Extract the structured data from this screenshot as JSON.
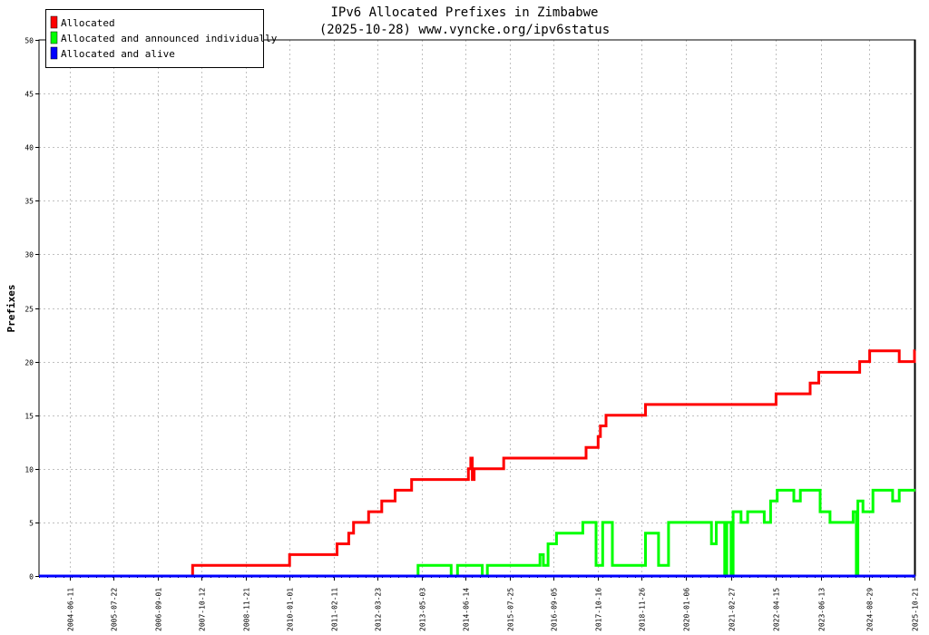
{
  "chart_data": {
    "type": "line",
    "title": "IPv6 Allocated Prefixes in Zimbabwe",
    "subtitle": "(2025-10-28) www.vyncke.org/ipv6status",
    "ylabel": "Prefixes",
    "xlabel": "",
    "ylim": [
      0,
      50
    ],
    "yticks": [
      0,
      5,
      10,
      15,
      20,
      25,
      30,
      35,
      40,
      45,
      50
    ],
    "xlim": [
      "2003-09-01",
      "2025-10-28"
    ],
    "xticks": [
      "2004-06-11",
      "2005-07-22",
      "2006-09-01",
      "2007-10-12",
      "2008-11-21",
      "2010-01-01",
      "2011-02-11",
      "2012-03-23",
      "2013-05-03",
      "2014-06-14",
      "2015-07-25",
      "2016-09-05",
      "2017-10-16",
      "2018-11-26",
      "2020-01-06",
      "2021-02-27",
      "2022-04-15",
      "2023-06-13",
      "2024-08-29",
      "2025-10-21"
    ],
    "grid": true,
    "legend_position": "top-left",
    "series": [
      {
        "name": "Allocated",
        "color": "#ff0000",
        "points": [
          [
            "2003-09-01",
            0
          ],
          [
            "2007-07-20",
            0
          ],
          [
            "2007-07-20",
            1
          ],
          [
            "2010-01-01",
            1
          ],
          [
            "2010-01-01",
            2
          ],
          [
            "2011-03-15",
            2
          ],
          [
            "2011-03-15",
            3
          ],
          [
            "2011-07-01",
            3
          ],
          [
            "2011-07-01",
            4
          ],
          [
            "2011-08-15",
            4
          ],
          [
            "2011-08-15",
            5
          ],
          [
            "2012-01-01",
            5
          ],
          [
            "2012-01-01",
            6
          ],
          [
            "2012-05-01",
            6
          ],
          [
            "2012-05-01",
            7
          ],
          [
            "2012-09-01",
            7
          ],
          [
            "2012-09-01",
            8
          ],
          [
            "2013-02-01",
            8
          ],
          [
            "2013-02-01",
            9
          ],
          [
            "2014-07-10",
            9
          ],
          [
            "2014-07-10",
            10
          ],
          [
            "2014-08-01",
            10
          ],
          [
            "2014-08-01",
            11
          ],
          [
            "2014-08-15",
            11
          ],
          [
            "2014-08-15",
            9
          ],
          [
            "2014-09-01",
            9
          ],
          [
            "2014-09-01",
            10
          ],
          [
            "2015-06-01",
            10
          ],
          [
            "2015-06-01",
            11
          ],
          [
            "2017-07-01",
            11
          ],
          [
            "2017-07-01",
            12
          ],
          [
            "2017-10-20",
            12
          ],
          [
            "2017-10-20",
            13
          ],
          [
            "2017-11-10",
            13
          ],
          [
            "2017-11-10",
            14
          ],
          [
            "2018-01-01",
            14
          ],
          [
            "2018-01-01",
            15
          ],
          [
            "2019-01-01",
            15
          ],
          [
            "2019-01-01",
            16
          ],
          [
            "2022-04-20",
            16
          ],
          [
            "2022-04-20",
            17
          ],
          [
            "2023-03-01",
            17
          ],
          [
            "2023-03-01",
            18
          ],
          [
            "2023-05-20",
            18
          ],
          [
            "2023-05-20",
            19
          ],
          [
            "2024-06-01",
            19
          ],
          [
            "2024-06-01",
            20
          ],
          [
            "2024-09-01",
            20
          ],
          [
            "2024-09-01",
            21
          ],
          [
            "2025-06-01",
            21
          ],
          [
            "2025-06-01",
            20
          ],
          [
            "2025-10-20",
            20
          ],
          [
            "2025-10-20",
            21
          ],
          [
            "2025-10-28",
            21
          ]
        ]
      },
      {
        "name": "Allocated and announced individually",
        "color": "#00ff00",
        "points": [
          [
            "2003-09-01",
            0
          ],
          [
            "2013-04-01",
            0
          ],
          [
            "2013-04-01",
            1
          ],
          [
            "2014-02-01",
            1
          ],
          [
            "2014-02-01",
            0
          ],
          [
            "2014-04-01",
            0
          ],
          [
            "2014-04-01",
            1
          ],
          [
            "2014-11-15",
            1
          ],
          [
            "2014-11-15",
            0
          ],
          [
            "2015-01-01",
            0
          ],
          [
            "2015-01-01",
            1
          ],
          [
            "2016-05-01",
            1
          ],
          [
            "2016-05-01",
            2
          ],
          [
            "2016-06-01",
            2
          ],
          [
            "2016-06-01",
            1
          ],
          [
            "2016-07-15",
            1
          ],
          [
            "2016-07-15",
            3
          ],
          [
            "2016-10-01",
            3
          ],
          [
            "2016-10-01",
            4
          ],
          [
            "2017-06-01",
            4
          ],
          [
            "2017-06-01",
            5
          ],
          [
            "2017-10-01",
            5
          ],
          [
            "2017-10-01",
            1
          ],
          [
            "2017-12-01",
            1
          ],
          [
            "2017-12-01",
            5
          ],
          [
            "2018-03-01",
            5
          ],
          [
            "2018-03-01",
            1
          ],
          [
            "2019-01-01",
            1
          ],
          [
            "2019-01-01",
            4
          ],
          [
            "2019-05-01",
            4
          ],
          [
            "2019-05-01",
            1
          ],
          [
            "2019-08-01",
            1
          ],
          [
            "2019-08-01",
            5
          ],
          [
            "2020-09-01",
            5
          ],
          [
            "2020-09-01",
            3
          ],
          [
            "2020-10-15",
            3
          ],
          [
            "2020-10-15",
            5
          ],
          [
            "2021-01-01",
            5
          ],
          [
            "2021-01-01",
            0
          ],
          [
            "2021-01-20",
            0
          ],
          [
            "2021-01-20",
            5
          ],
          [
            "2021-03-01",
            5
          ],
          [
            "2021-03-01",
            0
          ],
          [
            "2021-03-20",
            0
          ],
          [
            "2021-03-20",
            6
          ],
          [
            "2021-06-01",
            6
          ],
          [
            "2021-06-01",
            5
          ],
          [
            "2021-08-01",
            5
          ],
          [
            "2021-08-01",
            6
          ],
          [
            "2022-01-01",
            6
          ],
          [
            "2022-01-01",
            5
          ],
          [
            "2022-03-01",
            5
          ],
          [
            "2022-03-01",
            7
          ],
          [
            "2022-05-01",
            7
          ],
          [
            "2022-05-01",
            8
          ],
          [
            "2022-10-01",
            8
          ],
          [
            "2022-10-01",
            7
          ],
          [
            "2022-12-01",
            7
          ],
          [
            "2022-12-01",
            8
          ],
          [
            "2023-06-01",
            8
          ],
          [
            "2023-06-01",
            6
          ],
          [
            "2023-09-01",
            6
          ],
          [
            "2023-09-01",
            5
          ],
          [
            "2024-04-01",
            5
          ],
          [
            "2024-04-01",
            6
          ],
          [
            "2024-05-01",
            6
          ],
          [
            "2024-05-01",
            0
          ],
          [
            "2024-05-15",
            0
          ],
          [
            "2024-05-15",
            7
          ],
          [
            "2024-07-01",
            7
          ],
          [
            "2024-07-01",
            6
          ],
          [
            "2024-10-01",
            6
          ],
          [
            "2024-10-01",
            8
          ],
          [
            "2025-04-01",
            8
          ],
          [
            "2025-04-01",
            7
          ],
          [
            "2025-06-01",
            7
          ],
          [
            "2025-06-01",
            8
          ],
          [
            "2025-10-28",
            8
          ]
        ]
      },
      {
        "name": "Allocated and alive",
        "color": "#0000ff",
        "points": [
          [
            "2003-09-01",
            0
          ],
          [
            "2025-10-28",
            0
          ]
        ]
      }
    ]
  }
}
